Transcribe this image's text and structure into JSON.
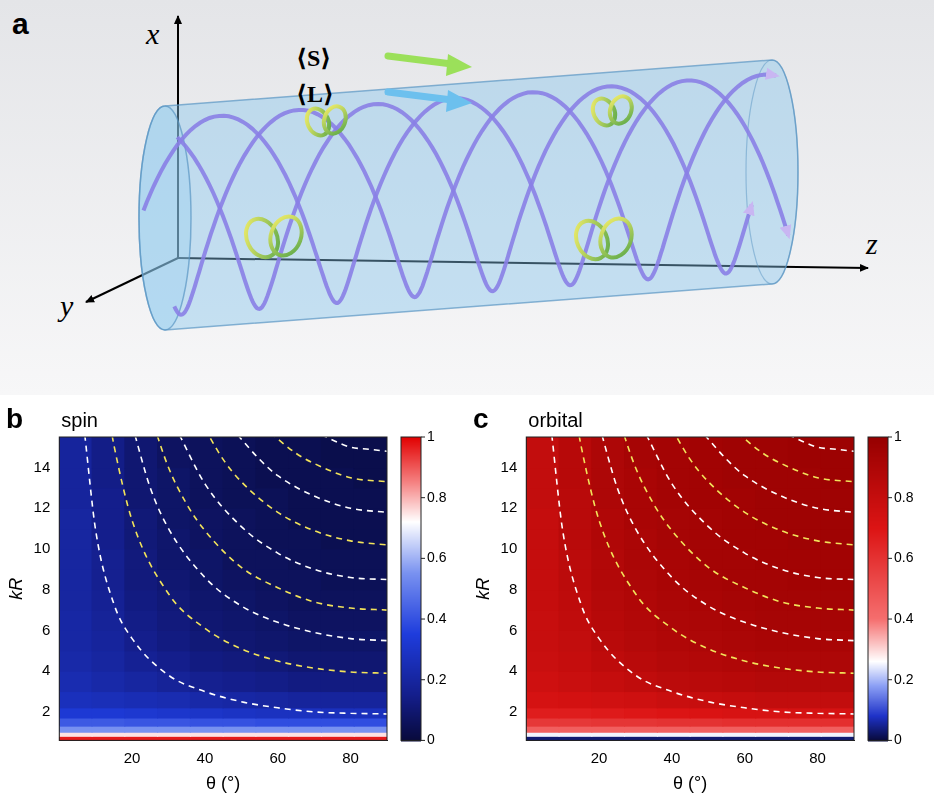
{
  "diagram": {
    "letter": "a",
    "axis_labels": [
      "x",
      "y",
      "z"
    ],
    "vectors": [
      {
        "label": "⟨S⟩",
        "color": "#9be05a"
      },
      {
        "label": "⟨L⟩",
        "color": "#6cc0ee"
      }
    ]
  },
  "chart_data": [
    {
      "type": "heatmap",
      "panel": "b",
      "title": "spin",
      "x_label": "θ (°)",
      "y_label": "kR",
      "xlim": [
        0,
        90
      ],
      "xticks": [
        20,
        40,
        60,
        80
      ],
      "ylim": [
        0.6,
        15.5
      ],
      "yticks": [
        2,
        4,
        6,
        8,
        10,
        12,
        14
      ],
      "grid": false,
      "x_edges": [
        0,
        9,
        18,
        27,
        36,
        45,
        54,
        63,
        72,
        81,
        90
      ],
      "y_edges": [
        0.6,
        0.8,
        1.0,
        1.3,
        1.7,
        2.2,
        3,
        4,
        5,
        6,
        7,
        8,
        9,
        10,
        11,
        12,
        13,
        14,
        15.5
      ],
      "cells": [
        [
          0.97,
          0.97,
          0.97,
          0.97,
          0.97,
          0.97,
          0.97,
          0.97,
          0.97,
          0.97
        ],
        [
          0.75,
          0.75,
          0.75,
          0.75,
          0.75,
          0.75,
          0.75,
          0.75,
          0.75,
          0.75
        ],
        [
          0.55,
          0.55,
          0.55,
          0.55,
          0.55,
          0.55,
          0.55,
          0.55,
          0.55,
          0.55
        ],
        [
          0.42,
          0.42,
          0.41,
          0.41,
          0.4,
          0.4,
          0.39,
          0.39,
          0.39,
          0.39
        ],
        [
          0.33,
          0.33,
          0.32,
          0.31,
          0.3,
          0.29,
          0.28,
          0.28,
          0.27,
          0.27
        ],
        [
          0.27,
          0.26,
          0.25,
          0.24,
          0.22,
          0.21,
          0.2,
          0.19,
          0.19,
          0.19
        ],
        [
          0.24,
          0.22,
          0.2,
          0.18,
          0.16,
          0.15,
          0.14,
          0.13,
          0.13,
          0.13
        ],
        [
          0.22,
          0.2,
          0.17,
          0.15,
          0.13,
          0.12,
          0.11,
          0.1,
          0.1,
          0.1
        ],
        [
          0.21,
          0.19,
          0.15,
          0.13,
          0.11,
          0.1,
          0.09,
          0.08,
          0.08,
          0.08
        ],
        [
          0.21,
          0.18,
          0.14,
          0.12,
          0.1,
          0.09,
          0.08,
          0.07,
          0.07,
          0.07
        ],
        [
          0.2,
          0.17,
          0.13,
          0.11,
          0.09,
          0.08,
          0.07,
          0.06,
          0.06,
          0.06
        ],
        [
          0.2,
          0.16,
          0.12,
          0.1,
          0.08,
          0.07,
          0.06,
          0.06,
          0.05,
          0.05
        ],
        [
          0.2,
          0.16,
          0.12,
          0.09,
          0.08,
          0.06,
          0.06,
          0.05,
          0.05,
          0.05
        ],
        [
          0.2,
          0.15,
          0.11,
          0.09,
          0.07,
          0.06,
          0.05,
          0.05,
          0.04,
          0.04
        ],
        [
          0.2,
          0.15,
          0.11,
          0.08,
          0.07,
          0.06,
          0.05,
          0.04,
          0.04,
          0.04
        ],
        [
          0.19,
          0.15,
          0.1,
          0.08,
          0.06,
          0.05,
          0.05,
          0.04,
          0.04,
          0.04
        ],
        [
          0.19,
          0.14,
          0.1,
          0.08,
          0.06,
          0.05,
          0.04,
          0.04,
          0.04,
          0.03
        ],
        [
          0.19,
          0.14,
          0.1,
          0.07,
          0.06,
          0.05,
          0.04,
          0.04,
          0.03,
          0.03
        ]
      ],
      "colorbar": {
        "range": [
          0,
          1
        ],
        "ticks": [
          0,
          0.2,
          0.4,
          0.6,
          0.8,
          1
        ]
      },
      "contours": [
        {
          "color": "#ffffff",
          "line_style": "dashed",
          "x": [
            7,
            10,
            15,
            20,
            30,
            40,
            50,
            60,
            70,
            80,
            90
          ],
          "y": [
            15.6,
            10.9,
            7.3,
            5.6,
            3.8,
            3.0,
            2.5,
            2.2,
            2.0,
            1.93,
            1.9
          ]
        },
        {
          "color": "#f2e35a",
          "line_style": "dashed",
          "x": [
            14,
            15,
            20,
            30,
            40,
            50,
            60,
            70,
            80,
            90
          ],
          "y": [
            16.1,
            15.1,
            11.4,
            7.8,
            6.1,
            5.1,
            4.5,
            4.15,
            3.96,
            3.9
          ]
        },
        {
          "color": "#ffffff",
          "line_style": "dashed",
          "x": [
            20,
            25,
            30,
            40,
            50,
            60,
            70,
            80,
            90
          ],
          "y": [
            16.1,
            13.0,
            11.0,
            8.6,
            7.2,
            6.4,
            5.9,
            5.6,
            5.5
          ]
        },
        {
          "color": "#f2e35a",
          "line_style": "dashed",
          "x": [
            25,
            30,
            35,
            40,
            50,
            60,
            70,
            80,
            90
          ],
          "y": [
            16.6,
            14.0,
            12.2,
            10.9,
            9.1,
            8.1,
            7.4,
            7.1,
            7.0
          ]
        },
        {
          "color": "#ffffff",
          "line_style": "dashed",
          "x": [
            33,
            40,
            50,
            60,
            70,
            80,
            90
          ],
          "y": [
            15.6,
            13.2,
            11.1,
            9.8,
            9.0,
            8.6,
            8.5
          ]
        },
        {
          "color": "#f2e35a",
          "line_style": "dashed",
          "x": [
            40,
            45,
            50,
            60,
            70,
            80,
            90
          ],
          "y": [
            15.9,
            14.4,
            13.3,
            11.8,
            10.9,
            10.4,
            10.2
          ]
        },
        {
          "color": "#ffffff",
          "line_style": "dashed",
          "x": [
            49,
            55,
            60,
            70,
            80,
            90
          ],
          "y": [
            15.6,
            14.4,
            13.6,
            12.6,
            12.0,
            11.8
          ]
        },
        {
          "color": "#f2e35a",
          "line_style": "dashed",
          "x": [
            58,
            65,
            70,
            80,
            90
          ],
          "y": [
            15.7,
            14.7,
            14.2,
            13.5,
            13.3
          ]
        },
        {
          "color": "#ffffff",
          "line_style": "dashed",
          "x": [
            72,
            80,
            85,
            90
          ],
          "y": [
            15.6,
            15.0,
            14.9,
            14.8
          ]
        }
      ]
    },
    {
      "type": "heatmap",
      "panel": "c",
      "title": "orbital",
      "x_label": "θ (°)",
      "y_label": "kR",
      "xlim": [
        0,
        90
      ],
      "xticks": [
        20,
        40,
        60,
        80
      ],
      "ylim": [
        0.6,
        15.5
      ],
      "yticks": [
        2,
        4,
        6,
        8,
        10,
        12,
        14
      ],
      "grid": false,
      "x_edges": [
        0,
        9,
        18,
        27,
        36,
        45,
        54,
        63,
        72,
        81,
        90
      ],
      "y_edges": [
        0.6,
        0.8,
        1.0,
        1.3,
        1.7,
        2.2,
        3,
        4,
        5,
        6,
        7,
        8,
        9,
        10,
        11,
        12,
        13,
        14,
        15.5
      ],
      "cells": [
        [
          0.03,
          0.03,
          0.03,
          0.03,
          0.03,
          0.03,
          0.03,
          0.03,
          0.03,
          0.03
        ],
        [
          0.25,
          0.25,
          0.25,
          0.25,
          0.25,
          0.25,
          0.25,
          0.25,
          0.25,
          0.25
        ],
        [
          0.45,
          0.45,
          0.45,
          0.45,
          0.45,
          0.45,
          0.45,
          0.45,
          0.45,
          0.45
        ],
        [
          0.58,
          0.58,
          0.59,
          0.59,
          0.6,
          0.6,
          0.61,
          0.61,
          0.61,
          0.61
        ],
        [
          0.67,
          0.67,
          0.68,
          0.69,
          0.7,
          0.71,
          0.72,
          0.72,
          0.73,
          0.73
        ],
        [
          0.73,
          0.74,
          0.75,
          0.76,
          0.78,
          0.79,
          0.8,
          0.81,
          0.81,
          0.81
        ],
        [
          0.76,
          0.78,
          0.8,
          0.82,
          0.84,
          0.85,
          0.86,
          0.87,
          0.87,
          0.87
        ],
        [
          0.78,
          0.8,
          0.83,
          0.85,
          0.87,
          0.88,
          0.89,
          0.9,
          0.9,
          0.9
        ],
        [
          0.79,
          0.81,
          0.85,
          0.87,
          0.89,
          0.9,
          0.91,
          0.92,
          0.92,
          0.92
        ],
        [
          0.79,
          0.82,
          0.86,
          0.88,
          0.9,
          0.91,
          0.92,
          0.93,
          0.93,
          0.93
        ],
        [
          0.8,
          0.83,
          0.87,
          0.89,
          0.91,
          0.92,
          0.93,
          0.94,
          0.94,
          0.94
        ],
        [
          0.8,
          0.84,
          0.88,
          0.9,
          0.92,
          0.93,
          0.94,
          0.94,
          0.95,
          0.95
        ],
        [
          0.8,
          0.84,
          0.88,
          0.91,
          0.92,
          0.94,
          0.94,
          0.95,
          0.95,
          0.95
        ],
        [
          0.8,
          0.85,
          0.89,
          0.91,
          0.93,
          0.94,
          0.95,
          0.95,
          0.96,
          0.96
        ],
        [
          0.8,
          0.85,
          0.89,
          0.92,
          0.93,
          0.94,
          0.95,
          0.96,
          0.96,
          0.96
        ],
        [
          0.81,
          0.85,
          0.9,
          0.92,
          0.94,
          0.95,
          0.95,
          0.96,
          0.96,
          0.96
        ],
        [
          0.81,
          0.86,
          0.9,
          0.92,
          0.94,
          0.95,
          0.96,
          0.96,
          0.96,
          0.97
        ],
        [
          0.81,
          0.86,
          0.9,
          0.93,
          0.94,
          0.95,
          0.96,
          0.96,
          0.97,
          0.97
        ]
      ],
      "colorbar": {
        "range": [
          0,
          1
        ],
        "ticks": [
          0,
          0.2,
          0.4,
          0.6,
          0.8,
          1
        ]
      },
      "contours": [
        {
          "color": "#ffffff",
          "line_style": "dashed",
          "x": [
            7,
            10,
            15,
            20,
            30,
            40,
            50,
            60,
            70,
            80,
            90
          ],
          "y": [
            15.6,
            10.9,
            7.3,
            5.6,
            3.8,
            3.0,
            2.5,
            2.2,
            2.0,
            1.93,
            1.9
          ]
        },
        {
          "color": "#f2e35a",
          "line_style": "dashed",
          "x": [
            14,
            15,
            20,
            30,
            40,
            50,
            60,
            70,
            80,
            90
          ],
          "y": [
            16.1,
            15.1,
            11.4,
            7.8,
            6.1,
            5.1,
            4.5,
            4.15,
            3.96,
            3.9
          ]
        },
        {
          "color": "#ffffff",
          "line_style": "dashed",
          "x": [
            20,
            25,
            30,
            40,
            50,
            60,
            70,
            80,
            90
          ],
          "y": [
            16.1,
            13.0,
            11.0,
            8.6,
            7.2,
            6.4,
            5.9,
            5.6,
            5.5
          ]
        },
        {
          "color": "#f2e35a",
          "line_style": "dashed",
          "x": [
            25,
            30,
            35,
            40,
            50,
            60,
            70,
            80,
            90
          ],
          "y": [
            16.6,
            14.0,
            12.2,
            10.9,
            9.1,
            8.1,
            7.4,
            7.1,
            7.0
          ]
        },
        {
          "color": "#ffffff",
          "line_style": "dashed",
          "x": [
            33,
            40,
            50,
            60,
            70,
            80,
            90
          ],
          "y": [
            15.6,
            13.2,
            11.1,
            9.8,
            9.0,
            8.6,
            8.5
          ]
        },
        {
          "color": "#f2e35a",
          "line_style": "dashed",
          "x": [
            40,
            45,
            50,
            60,
            70,
            80,
            90
          ],
          "y": [
            15.9,
            14.4,
            13.3,
            11.8,
            10.9,
            10.4,
            10.2
          ]
        },
        {
          "color": "#ffffff",
          "line_style": "dashed",
          "x": [
            49,
            55,
            60,
            70,
            80,
            90
          ],
          "y": [
            15.6,
            14.4,
            13.6,
            12.6,
            12.0,
            11.8
          ]
        },
        {
          "color": "#f2e35a",
          "line_style": "dashed",
          "x": [
            58,
            65,
            70,
            80,
            90
          ],
          "y": [
            15.7,
            14.7,
            14.2,
            13.5,
            13.3
          ]
        },
        {
          "color": "#ffffff",
          "line_style": "dashed",
          "x": [
            72,
            80,
            85,
            90
          ],
          "y": [
            15.6,
            15.0,
            14.9,
            14.8
          ]
        }
      ]
    }
  ]
}
